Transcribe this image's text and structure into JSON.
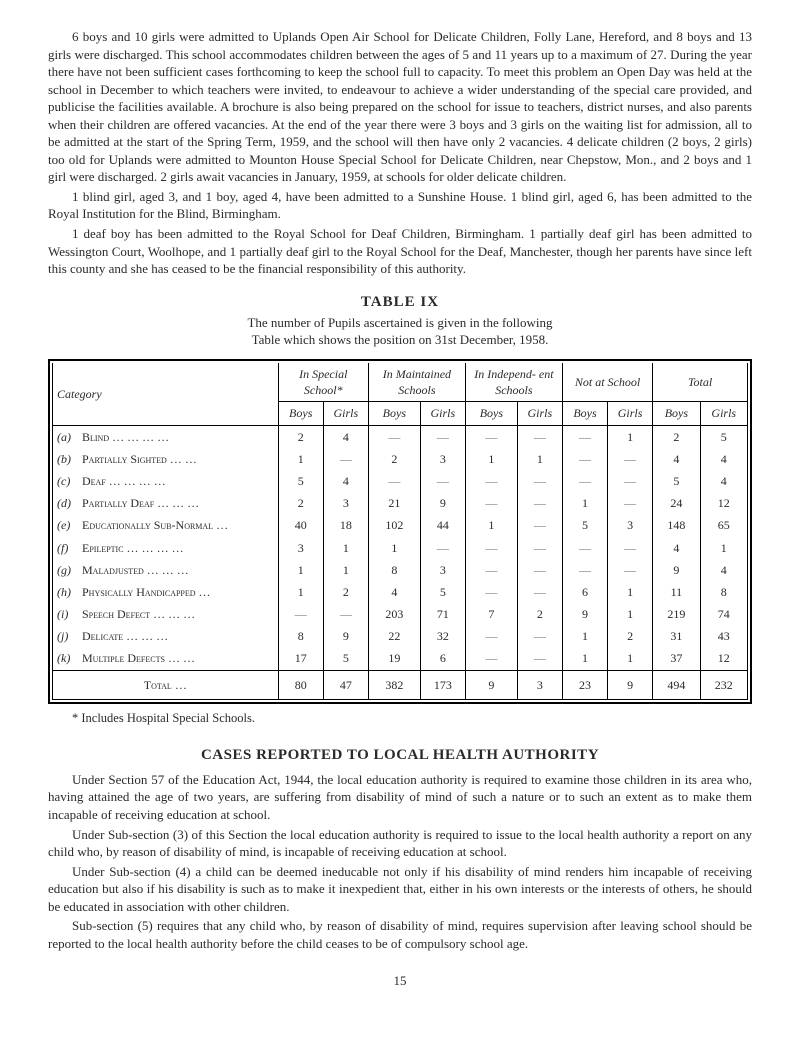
{
  "paragraphs_top": [
    "6 boys and 10 girls were admitted to Uplands Open Air School for Delicate Children, Folly Lane, Hereford, and 8 boys and 13 girls were discharged. This school accommodates children between the ages of 5 and 11 years up to a maximum of 27. During the year there have not been sufficient cases forthcoming to keep the school full to capacity. To meet this problem an Open Day was held at the school in December to which teachers were invited, to endeavour to achieve a wider understanding of the special care provided, and publicise the facilities available. A brochure is also being prepared on the school for issue to teachers, district nurses, and also parents when their children are offered vacancies. At the end of the year there were 3 boys and 3 girls on the waiting list for admission, all to be admitted at the start of the Spring Term, 1959, and the school will then have only 2 vacancies. 4 delicate children (2 boys, 2 girls) too old for Uplands were admitted to Mounton House Special School for Delicate Children, near Chepstow, Mon., and 2 boys and 1 girl were discharged. 2 girls await vacancies in January, 1959, at schools for older delicate children.",
    "1 blind girl, aged 3, and 1 boy, aged 4, have been admitted to a Sunshine House. 1 blind girl, aged 6, has been admitted to the Royal Institution for the Blind, Birmingham.",
    "1 deaf boy has been admitted to the Royal School for Deaf Children, Birmingham. 1 partially deaf girl has been admitted to Wessington Court, Woolhope, and 1 partially deaf girl to the Royal School for the Deaf, Manchester, though her parents have since left this county and she has ceased to be the financial responsibility of this authority."
  ],
  "table_title": "TABLE IX",
  "table_caption_1": "The number of Pupils ascertained is given in the following",
  "table_caption_2": "Table which shows the position on 31st December, 1958.",
  "headers_top": [
    "Category",
    "In Special School*",
    "In Maintained Schools",
    "In Independ- ent Schools",
    "Not at School",
    "Total"
  ],
  "headers_sub": [
    "Boys",
    "Girls",
    "Boys",
    "Girls",
    "Boys",
    "Girls",
    "Boys",
    "Girls",
    "Boys",
    "Girls"
  ],
  "rows": [
    {
      "idx": "(a)",
      "label": "Blind",
      "label_suffix": "   …   …   …   …",
      "v": [
        "2",
        "4",
        "—",
        "—",
        "—",
        "—",
        "—",
        "1",
        "2",
        "5"
      ]
    },
    {
      "idx": "(b)",
      "label": "Partially Sighted",
      "label_suffix": "   …   …",
      "v": [
        "1",
        "—",
        "2",
        "3",
        "1",
        "1",
        "—",
        "—",
        "4",
        "4"
      ]
    },
    {
      "idx": "(c)",
      "label": "Deaf",
      "label_suffix": "   …   …   …   …",
      "v": [
        "5",
        "4",
        "—",
        "—",
        "—",
        "—",
        "—",
        "—",
        "5",
        "4"
      ]
    },
    {
      "idx": "(d)",
      "label": "Partially Deaf …",
      "label_suffix": "   …   …",
      "v": [
        "2",
        "3",
        "21",
        "9",
        "—",
        "—",
        "1",
        "—",
        "24",
        "12"
      ]
    },
    {
      "idx": "(e)",
      "label": "Educationally Sub-Normal",
      "label_suffix": "   …",
      "v": [
        "40",
        "18",
        "102",
        "44",
        "1",
        "—",
        "5",
        "3",
        "148",
        "65"
      ]
    },
    {
      "idx": "(f)",
      "label": "Epileptic …",
      "label_suffix": "   …   …   …",
      "v": [
        "3",
        "1",
        "1",
        "—",
        "—",
        "—",
        "—",
        "—",
        "4",
        "1"
      ]
    },
    {
      "idx": "(g)",
      "label": "Maladjusted",
      "label_suffix": "   …   …   …",
      "v": [
        "1",
        "1",
        "8",
        "3",
        "—",
        "—",
        "—",
        "—",
        "9",
        "4"
      ]
    },
    {
      "idx": "(h)",
      "label": "Physically Handicapped",
      "label_suffix": "   …",
      "v": [
        "1",
        "2",
        "4",
        "5",
        "—",
        "—",
        "6",
        "1",
        "11",
        "8"
      ]
    },
    {
      "idx": "(i)",
      "label": "Speech Defect",
      "label_suffix": "   …   …   …",
      "v": [
        "—",
        "—",
        "203",
        "71",
        "7",
        "2",
        "9",
        "1",
        "219",
        "74"
      ]
    },
    {
      "idx": "(j)",
      "label": "Delicate",
      "label_suffix": "   …   …   …",
      "v": [
        "8",
        "9",
        "22",
        "32",
        "—",
        "—",
        "1",
        "2",
        "31",
        "43"
      ]
    },
    {
      "idx": "(k)",
      "label": "Multiple Defects",
      "label_suffix": "   …   …",
      "v": [
        "17",
        "5",
        "19",
        "6",
        "—",
        "—",
        "1",
        "1",
        "37",
        "12"
      ]
    }
  ],
  "total_label": "Total   …",
  "total_values": [
    "80",
    "47",
    "382",
    "173",
    "9",
    "3",
    "23",
    "9",
    "494",
    "232"
  ],
  "footnote": "* Includes Hospital Special Schools.",
  "section_heading": "CASES REPORTED TO LOCAL HEALTH AUTHORITY",
  "paragraphs_bottom": [
    "Under Section 57 of the Education Act, 1944, the local education authority is required to examine those children in its area who, having attained the age of two years, are suffering from disability of mind of such a nature or to such an extent as to make them incapable of receiving education at school.",
    "Under Sub-section (3) of this Section the local education authority is required to issue to the local health authority a report on any child who, by reason of disability of mind, is incapable of receiving education at school.",
    "Under Sub-section (4) a child can be deemed ineducable not only if his disability of mind renders him incapable of receiving education but also if his disability is such as to make it inexpedient that, either in his own interests or the interests of others, he should be educated in association with other children.",
    "Sub-section (5) requires that any child who, by reason of disability of mind, requires supervision after leaving school should be reported to the local health authority before the child ceases to be of compulsory school age."
  ],
  "page_number": "15",
  "colors": {
    "text": "#2a2a2a",
    "border": "#000000",
    "background": "#ffffff"
  }
}
